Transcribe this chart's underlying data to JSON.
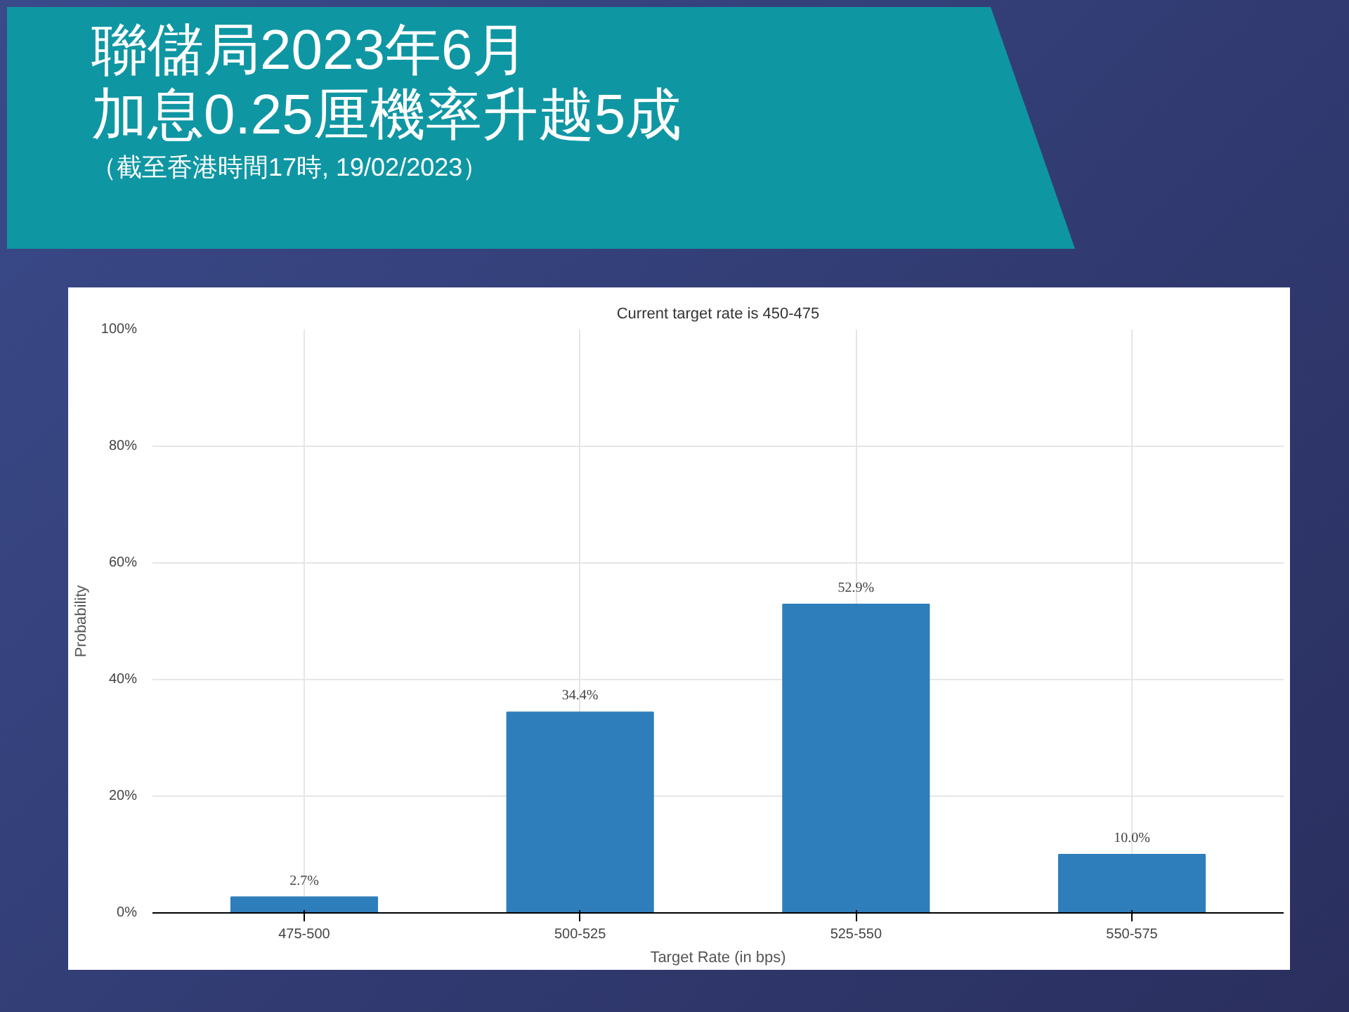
{
  "chart_data": {
    "type": "bar",
    "title": "聯儲局2023年6月",
    "subtitle": "加息0.25厘機率升越5成",
    "annotations": [
      "（截至香港時間17時, 19/02/2023）",
      "Current target rate is 450-475"
    ],
    "xlabel": "Target Rate (in bps)",
    "ylabel": "Probability",
    "categories": [
      "475-500",
      "500-525",
      "525-550",
      "550-575"
    ],
    "values": [
      2.7,
      34.4,
      52.9,
      10.0
    ],
    "value_labels": [
      "2.7%",
      "34.4%",
      "52.9%",
      "10.0%"
    ],
    "color": "#2e7ebc",
    "ylim": [
      0,
      100
    ],
    "yticks": [
      {
        "value": 0,
        "label": "0%"
      },
      {
        "value": 20,
        "label": "20%"
      },
      {
        "value": 40,
        "label": "40%"
      },
      {
        "value": 60,
        "label": "60%"
      },
      {
        "value": 80,
        "label": "80%"
      },
      {
        "value": 100,
        "label": "100%"
      }
    ],
    "grid": true
  }
}
